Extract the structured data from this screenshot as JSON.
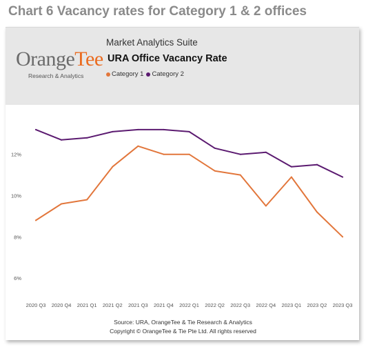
{
  "page_title": "Chart 6 Vacancy rates for Category 1 & 2 offices",
  "header": {
    "logo_orange": "Orange",
    "logo_tee": "Tee",
    "logo_sub": "Research & Analytics",
    "suite": "Market Analytics Suite"
  },
  "footer": {
    "source": "Source: URA, OrangeTee & Tie Research & Analytics",
    "copyright": "Copyright © OrangeTee & Tie Pte Ltd. All rights reserved"
  },
  "colors": {
    "category1": "#e2763b",
    "category2": "#5b1a70"
  },
  "chart_data": {
    "type": "line",
    "title": "URA Office Vacancy Rate",
    "xlabel": "",
    "ylabel": "",
    "categories": [
      "2020 Q3",
      "2020 Q4",
      "2021 Q1",
      "2021 Q2",
      "2021 Q3",
      "2021 Q4",
      "2022 Q1",
      "2022 Q2",
      "2022 Q3",
      "2022 Q4",
      "2023 Q1",
      "2023 Q2",
      "2023 Q3"
    ],
    "series": [
      {
        "name": "Category 1",
        "color": "#e2763b",
        "values": [
          8.8,
          9.6,
          9.8,
          11.4,
          12.4,
          12.0,
          12.0,
          11.2,
          11.0,
          9.5,
          10.9,
          9.2,
          8.0
        ]
      },
      {
        "name": "Category 2",
        "color": "#5b1a70",
        "values": [
          13.2,
          12.7,
          12.8,
          13.1,
          13.2,
          13.2,
          13.1,
          12.3,
          12.0,
          12.1,
          11.4,
          11.5,
          10.9
        ]
      }
    ],
    "yticks": [
      6,
      8,
      10,
      12
    ],
    "ytick_labels": [
      "6%",
      "8%",
      "10%",
      "12%"
    ],
    "ylim": [
      5.4,
      14.3
    ],
    "grid": false,
    "legend": "top-left"
  }
}
